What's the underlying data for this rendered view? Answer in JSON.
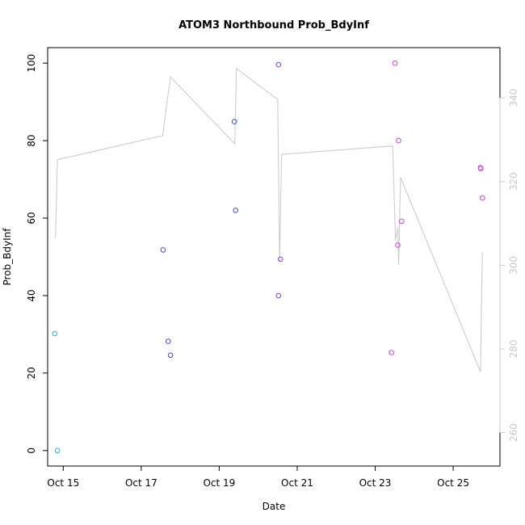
{
  "chart_data": {
    "type": "scatter",
    "title": "ATOM3 Northbound Prob_BdyInf",
    "xlabel": "Date",
    "ylabel": "Prob_BdyInf",
    "x_ticks": [
      "Oct 15",
      "Oct 17",
      "Oct 19",
      "Oct 21",
      "Oct 23",
      "Oct 25"
    ],
    "y_ticks": [
      "0",
      "20",
      "40",
      "60",
      "80",
      "100"
    ],
    "y2_ticks": [
      "260",
      "280",
      "300",
      "320",
      "340"
    ],
    "xlim_days": [
      14.6,
      26.2
    ],
    "ylim": [
      -4,
      104
    ],
    "y2lim": [
      252,
      352
    ],
    "x_ref": "Oct 15",
    "grid": false,
    "colors": {
      "point_cyan": "#29a9e0",
      "point_blue": "#3b48e8",
      "point_purple": "#8a3be8",
      "point_magenta": "#d63be8",
      "line_gray": "#c8c8c8",
      "axis": "#000000",
      "right_axis": "#c8c8c8"
    },
    "points": [
      {
        "day": 14.78,
        "y": 30.2,
        "color": "point_cyan"
      },
      {
        "day": 14.85,
        "y": 0.0,
        "color": "point_cyan"
      },
      {
        "day": 17.56,
        "y": 51.8,
        "color": "point_blue"
      },
      {
        "day": 17.69,
        "y": 28.2,
        "color": "point_blue"
      },
      {
        "day": 17.75,
        "y": 24.6,
        "color": "point_blue"
      },
      {
        "day": 19.39,
        "y": 84.9,
        "color": "point_blue"
      },
      {
        "day": 19.42,
        "y": 62.0,
        "color": "point_blue"
      },
      {
        "day": 20.52,
        "y": 99.6,
        "color": "point_purple"
      },
      {
        "day": 20.52,
        "y": 40.0,
        "color": "point_purple"
      },
      {
        "day": 20.57,
        "y": 49.4,
        "color": "point_purple"
      },
      {
        "day": 23.42,
        "y": 25.3,
        "color": "point_magenta"
      },
      {
        "day": 23.51,
        "y": 100.0,
        "color": "point_magenta"
      },
      {
        "day": 23.58,
        "y": 53.0,
        "color": "point_magenta"
      },
      {
        "day": 23.6,
        "y": 80.0,
        "color": "point_magenta"
      },
      {
        "day": 23.68,
        "y": 59.2,
        "color": "point_magenta"
      },
      {
        "day": 25.7,
        "y": 73.0,
        "color": "point_magenta"
      },
      {
        "day": 25.71,
        "y": 72.8,
        "color": "point_magenta"
      },
      {
        "day": 25.75,
        "y": 65.2,
        "color": "point_magenta"
      }
    ],
    "line_series": [
      {
        "day": 14.8,
        "y2": 306.5
      },
      {
        "day": 14.85,
        "y2": 325.2
      },
      {
        "day": 17.55,
        "y2": 331.0
      },
      {
        "day": 17.75,
        "y2": 345.0
      },
      {
        "day": 19.4,
        "y2": 329.0
      },
      {
        "day": 19.44,
        "y2": 347.0
      },
      {
        "day": 20.5,
        "y2": 339.6
      },
      {
        "day": 20.55,
        "y2": 301.0
      },
      {
        "day": 20.6,
        "y2": 326.5
      },
      {
        "day": 23.45,
        "y2": 328.5
      },
      {
        "day": 23.52,
        "y2": 306.0
      },
      {
        "day": 23.58,
        "y2": 309.0
      },
      {
        "day": 23.6,
        "y2": 300.0
      },
      {
        "day": 23.65,
        "y2": 321.0
      },
      {
        "day": 25.7,
        "y2": 274.5
      },
      {
        "day": 25.73,
        "y2": 293.0
      },
      {
        "day": 25.75,
        "y2": 303.0
      }
    ]
  }
}
